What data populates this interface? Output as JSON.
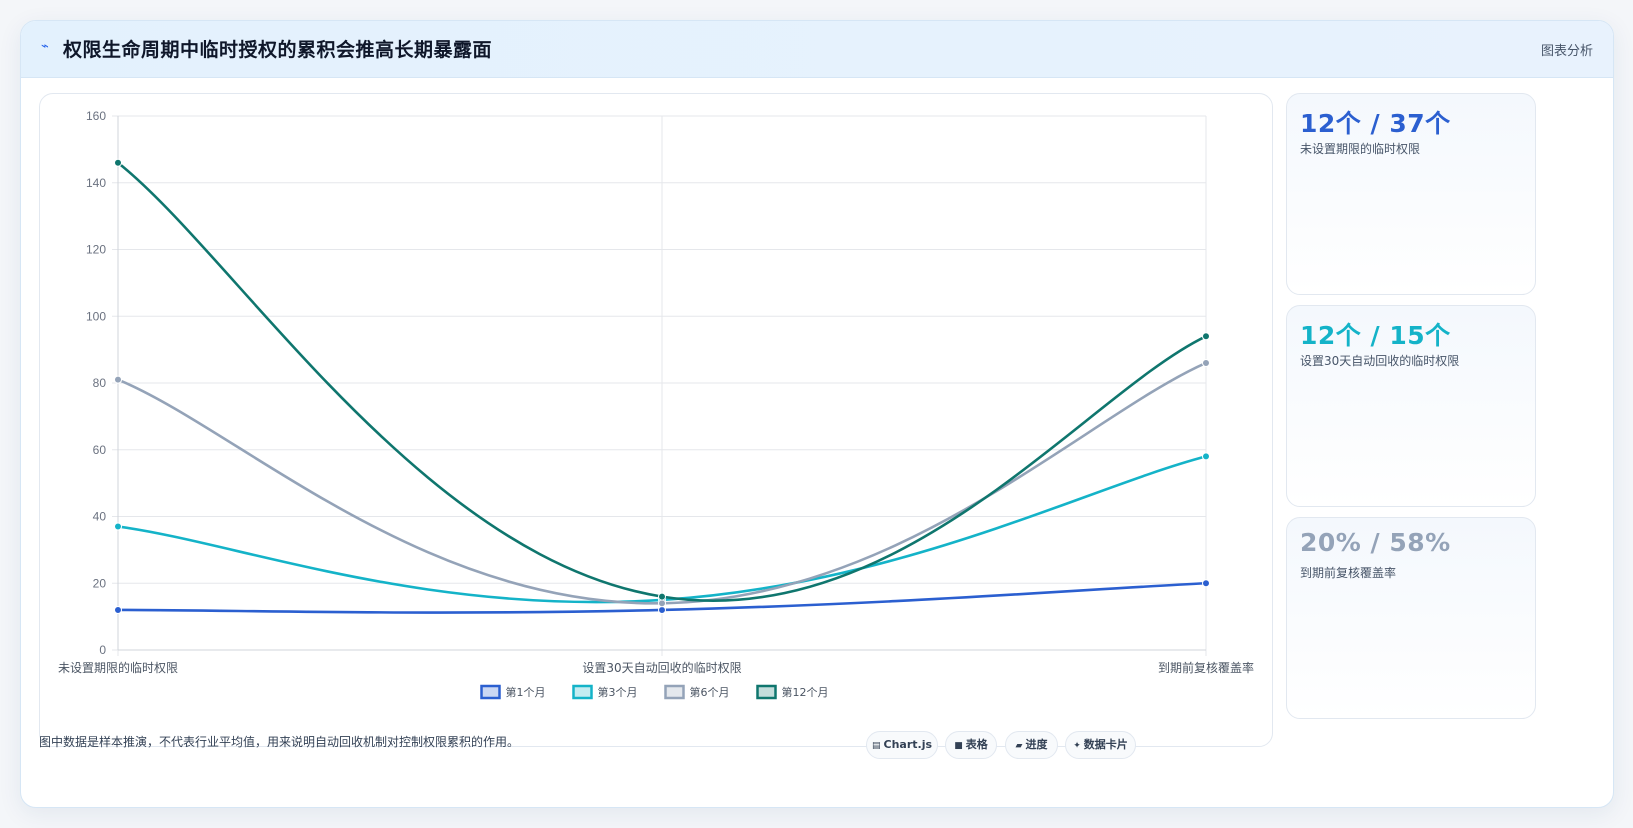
{
  "header": {
    "title": "权限生命周期中临时授权的累积会推高长期暴露面",
    "title_icon": "trend-icon",
    "tag": "图表分析"
  },
  "chart_data": {
    "type": "line",
    "categories": [
      "未设置期限的临时权限",
      "设置30天自动回收的临时权限",
      "到期前复核覆盖率"
    ],
    "series": [
      {
        "name": "第1个月",
        "values": [
          12,
          12,
          20
        ],
        "color": "#2b5fd0"
      },
      {
        "name": "第3个月",
        "values": [
          37,
          15,
          58
        ],
        "color": "#14b3c8"
      },
      {
        "name": "第6个月",
        "values": [
          81,
          14,
          86
        ],
        "color": "#94a3b8"
      },
      {
        "name": "第12个月",
        "values": [
          146,
          16,
          94
        ],
        "color": "#0f766e"
      }
    ],
    "ylim": [
      0,
      160
    ],
    "yticks": [
      "0",
      "20",
      "40",
      "60",
      "80",
      "100",
      "120",
      "140",
      "160"
    ],
    "grid": true,
    "legend": "bottom"
  },
  "stats": [
    {
      "value": "12个 / 37个",
      "label": "未设置期限的临时权限",
      "color": "#2b5fd0"
    },
    {
      "value": "12个 / 15个",
      "label": "设置30天自动回收的临时权限",
      "color": "#14b3c8"
    },
    {
      "value": "20% / 58%",
      "label": "到期前复核覆盖率",
      "color": "#94a3b8"
    }
  ],
  "footnote": "图中数据是样本推演，不代表行业平均值，用来说明自动回收机制对控制权限累积的作用。",
  "toolbar": [
    {
      "label": "Chart.js",
      "icon": "chart-icon",
      "glyph": "▤"
    },
    {
      "label": "表格",
      "icon": "table-icon",
      "glyph": "■"
    },
    {
      "label": "进度",
      "icon": "progress-icon",
      "glyph": "▰"
    },
    {
      "label": "数据卡片",
      "icon": "sparkle-icon",
      "glyph": "✦"
    }
  ]
}
